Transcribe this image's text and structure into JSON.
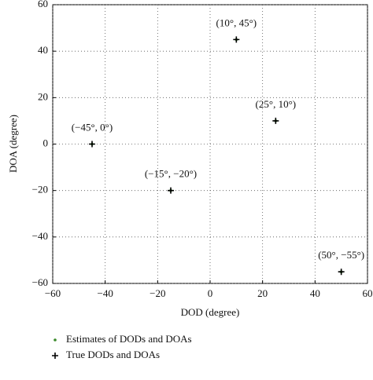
{
  "chart_data": {
    "type": "scatter",
    "xlabel": "DOD (degree)",
    "ylabel": "DOA (degree)",
    "xlim": [
      -60,
      60
    ],
    "ylim": [
      -60,
      60
    ],
    "xticks": [
      {
        "value": -60,
        "label": "−60"
      },
      {
        "value": -40,
        "label": "−40"
      },
      {
        "value": -20,
        "label": "−20"
      },
      0,
      20,
      40,
      60
    ],
    "yticks": [
      {
        "value": -60,
        "label": "−60"
      },
      {
        "value": -40,
        "label": "−40"
      },
      {
        "value": -20,
        "label": "−20"
      },
      0,
      20,
      40,
      60
    ],
    "grid": true,
    "series": [
      {
        "name": "Estimates of DODs and DOAs",
        "color": "#3a8a2a",
        "marker": "dot",
        "x": [
          -45,
          10,
          25,
          -15,
          50
        ],
        "values": [
          0,
          45,
          10,
          -20,
          -55
        ]
      },
      {
        "name": "True DODs and DOAs",
        "color": "#000000",
        "marker": "plus",
        "x": [
          -45,
          10,
          25,
          -15,
          50
        ],
        "values": [
          0,
          45,
          10,
          -20,
          -55
        ]
      }
    ],
    "annotations": [
      "(−45°, 0°)",
      "(10°, 45°)",
      "(25°, 10°)",
      "(−15°, −20°)",
      "(50°, −55°)"
    ]
  }
}
